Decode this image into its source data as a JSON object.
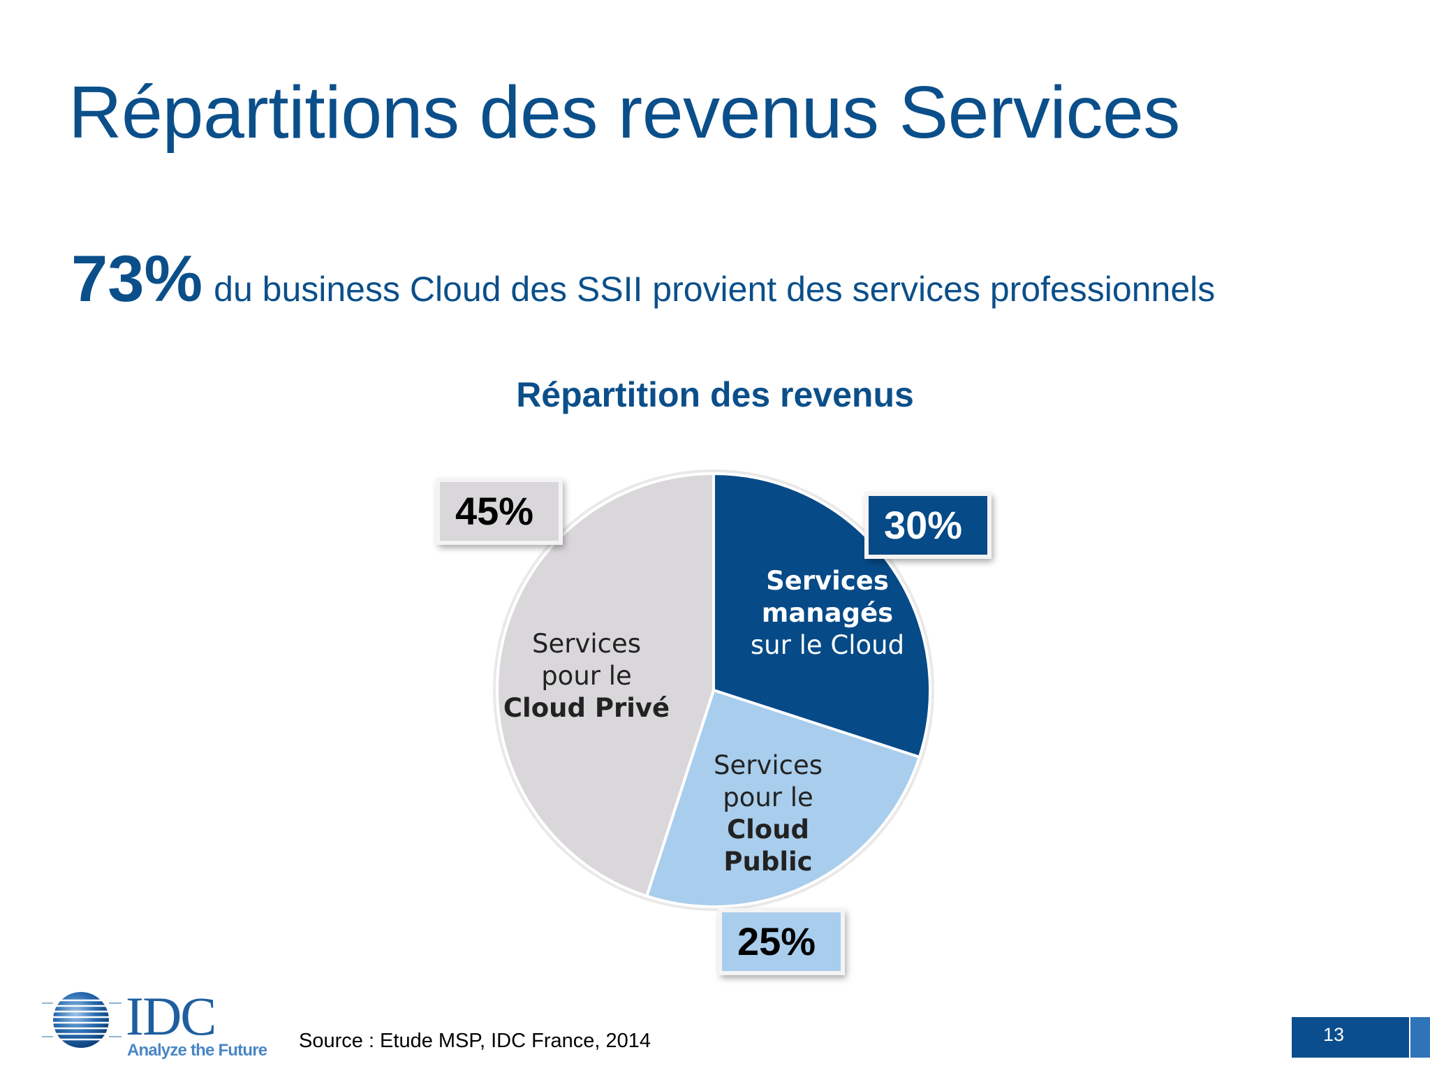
{
  "slide": {
    "title": "Répartitions des revenus Services",
    "headline_value": "73%",
    "headline_text": "du business Cloud des SSII provient des services professionnels",
    "source": "Source : Etude MSP, IDC France, 2014",
    "page_number": "13"
  },
  "logo": {
    "text": "IDC",
    "tagline": "Analyze the Future"
  },
  "colors": {
    "title": "#0b4f8a",
    "managed": "#064a87",
    "public": "#a9cdec",
    "private": "#d9d7da"
  },
  "chart_data": {
    "type": "pie",
    "title": "Répartition des revenus",
    "start_angle_deg": 0,
    "direction": "clockwise",
    "slices": [
      {
        "name": "managed",
        "value": 30,
        "pct_label": "30%",
        "label_line1": "Services",
        "label_line2": "managés",
        "label_line3": "sur le Cloud",
        "color": "#064a87",
        "label_color": "#ffffff",
        "badge_color": "#064a87",
        "badge_text_color": "#ffffff"
      },
      {
        "name": "public",
        "value": 25,
        "pct_label": "25%",
        "label_line1": "Services",
        "label_line2": "pour le",
        "label_line3": "Cloud",
        "label_line4": "Public",
        "color": "#a9cdec",
        "label_color": "#222222",
        "badge_color": "#a9cdec",
        "badge_text_color": "#000000"
      },
      {
        "name": "private",
        "value": 45,
        "pct_label": "45%",
        "label_line1": "Services",
        "label_line2": "pour le",
        "label_line3": "Cloud Privé",
        "color": "#d9d7da",
        "label_color": "#222222",
        "badge_color": "#d9d7da",
        "badge_text_color": "#000000"
      }
    ]
  }
}
